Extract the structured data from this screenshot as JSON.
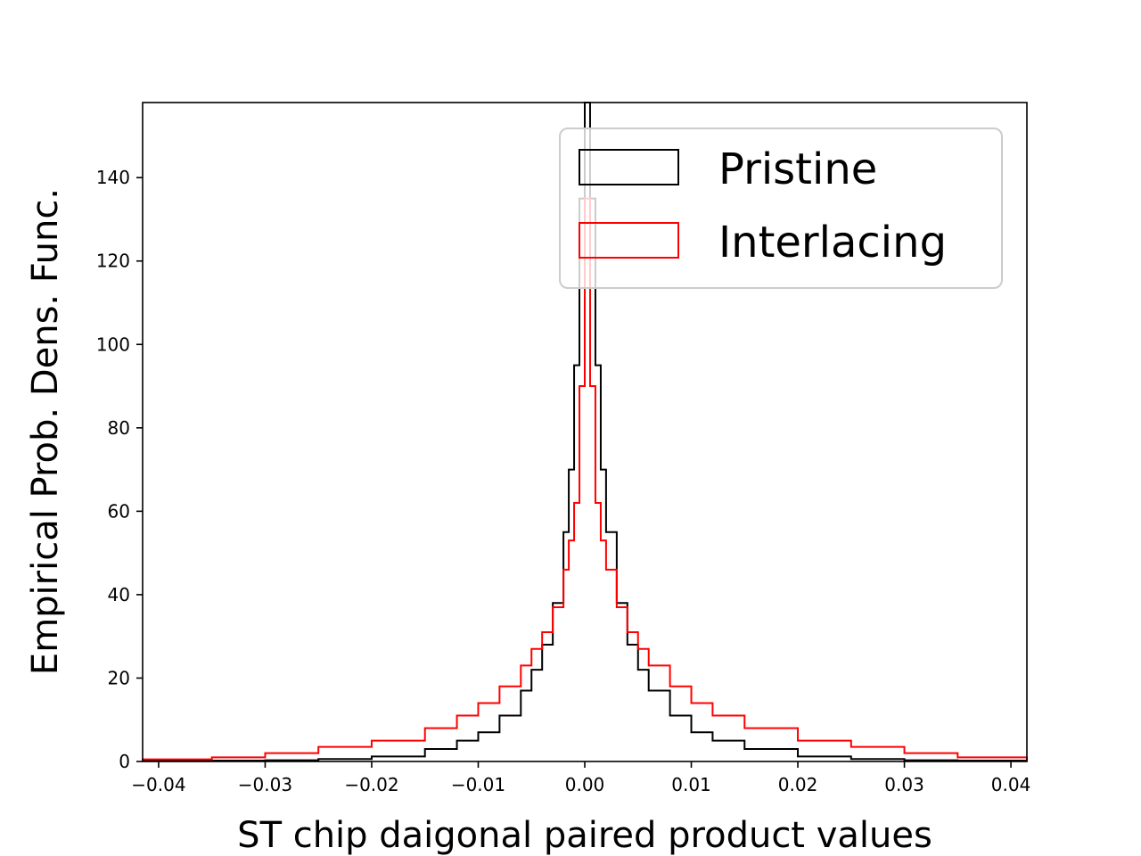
{
  "chart_data": {
    "type": "histogram",
    "xlabel": "ST chip daigonal paired product values",
    "ylabel": "Empirical Prob. Dens. Func.",
    "xlim": [
      -0.0415,
      0.0415
    ],
    "ylim": [
      0,
      158
    ],
    "xticks": [
      -0.04,
      -0.03,
      -0.02,
      -0.01,
      0.0,
      0.01,
      0.02,
      0.03,
      0.04
    ],
    "xtick_labels": [
      "−0.04",
      "−0.03",
      "−0.02",
      "−0.01",
      "0.00",
      "0.01",
      "0.02",
      "0.03",
      "0.04"
    ],
    "yticks": [
      0,
      20,
      40,
      60,
      80,
      100,
      120,
      140
    ],
    "ytick_labels": [
      "0",
      "20",
      "40",
      "60",
      "80",
      "100",
      "120",
      "140"
    ],
    "grid": false,
    "legend_position": "upper-right",
    "series": [
      {
        "name": "Pristine",
        "color": "#000000",
        "style": "step",
        "x": [
          -0.0415,
          -0.035,
          -0.03,
          -0.025,
          -0.02,
          -0.015,
          -0.012,
          -0.01,
          -0.008,
          -0.006,
          -0.005,
          -0.004,
          -0.003,
          -0.002,
          -0.0015,
          -0.001,
          -0.0005,
          0.0,
          0.0005,
          0.001,
          0.0015,
          0.002,
          0.003,
          0.004,
          0.005,
          0.006,
          0.008,
          0.01,
          0.012,
          0.015,
          0.02,
          0.025,
          0.03,
          0.035,
          0.0415
        ],
        "y": [
          0.1,
          0.2,
          0.3,
          0.6,
          1.2,
          3,
          5,
          7,
          11,
          17,
          22,
          28,
          38,
          55,
          70,
          95,
          135,
          158,
          135,
          95,
          70,
          55,
          38,
          28,
          22,
          17,
          11,
          7,
          5,
          3,
          1.2,
          0.6,
          0.3,
          0.2,
          0.1
        ]
      },
      {
        "name": "Interlacing",
        "color": "#ff0000",
        "style": "step",
        "x": [
          -0.0415,
          -0.035,
          -0.03,
          -0.025,
          -0.02,
          -0.015,
          -0.012,
          -0.01,
          -0.008,
          -0.006,
          -0.005,
          -0.004,
          -0.003,
          -0.002,
          -0.0015,
          -0.001,
          -0.0005,
          0.0,
          0.0005,
          0.001,
          0.0015,
          0.002,
          0.003,
          0.004,
          0.005,
          0.006,
          0.008,
          0.01,
          0.012,
          0.015,
          0.02,
          0.025,
          0.03,
          0.035,
          0.0415
        ],
        "y": [
          0.5,
          1,
          2,
          3.5,
          5,
          8,
          11,
          14,
          18,
          23,
          27,
          31,
          37,
          46,
          53,
          62,
          90,
          135,
          90,
          62,
          53,
          46,
          37,
          31,
          27,
          23,
          18,
          14,
          11,
          8,
          5,
          3.5,
          2,
          1,
          0.5
        ]
      }
    ]
  }
}
